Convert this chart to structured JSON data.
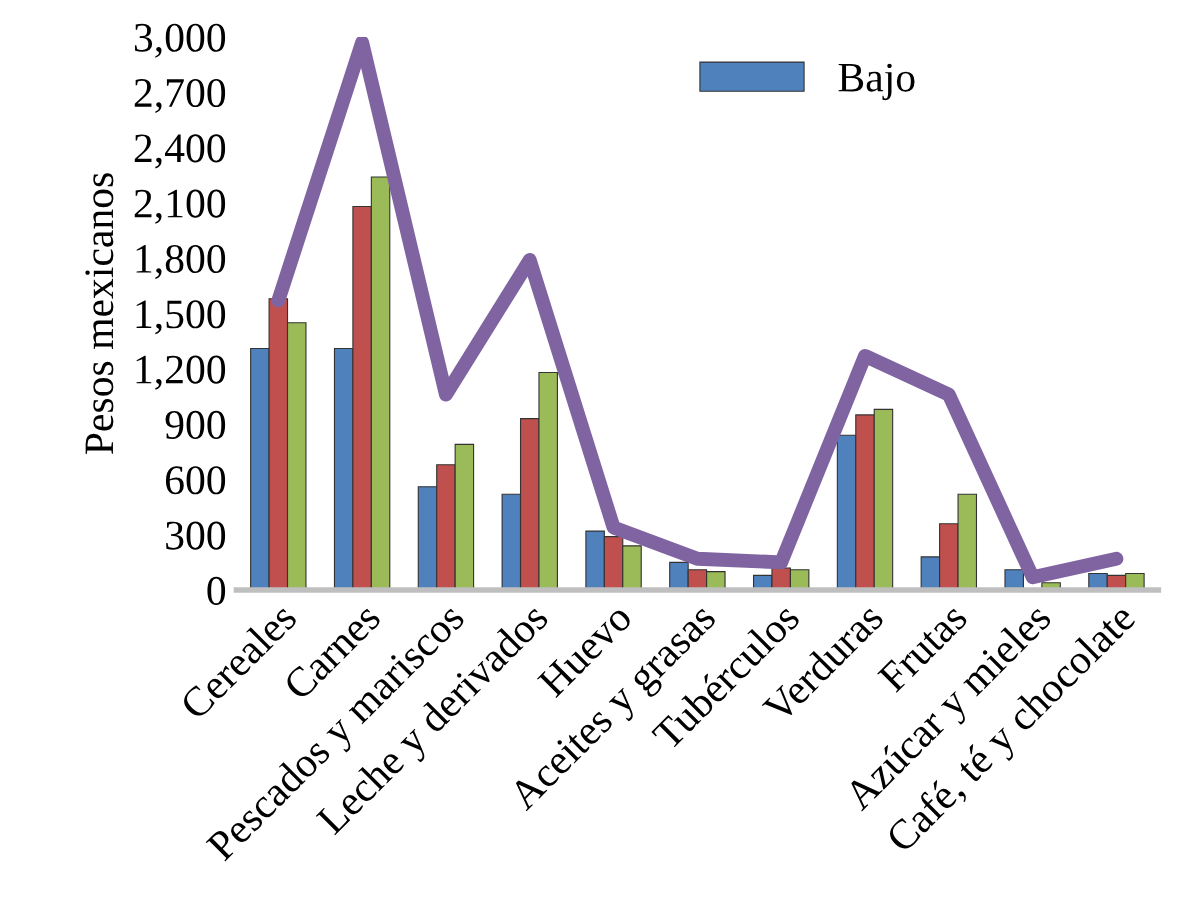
{
  "chart_data": {
    "type": "bar",
    "ylabel": "Pesos mexicanos",
    "categories": [
      "Cereales",
      "Carnes",
      "Pescados y mariscos",
      "Leche y derivados",
      "Huevo",
      "Aceites y grasas",
      "Tubérculos",
      "Verduras",
      "Frutas",
      "Azúcar y mieles",
      "Café, té y chocolate"
    ],
    "series": [
      {
        "name": "Bajo",
        "color": "#4f81bd",
        "values": [
          1310,
          1310,
          560,
          520,
          320,
          150,
          80,
          840,
          180,
          110,
          90
        ]
      },
      {
        "color": "#c0504d",
        "values": [
          1580,
          2080,
          680,
          930,
          290,
          110,
          120,
          950,
          360,
          null,
          80
        ]
      },
      {
        "color": "#9bbb59",
        "values": [
          1450,
          2240,
          790,
          1180,
          240,
          100,
          110,
          980,
          520,
          40,
          90
        ]
      },
      {
        "type": "line",
        "color": "#8064a2",
        "values": [
          1570,
          2970,
          1060,
          1790,
          340,
          170,
          150,
          1270,
          1060,
          70,
          170
        ]
      }
    ],
    "ylim": [
      0,
      3000
    ],
    "yticks": [
      {
        "value": 0,
        "label": "0"
      },
      {
        "value": 300,
        "label": "300"
      },
      {
        "value": 600,
        "label": "600"
      },
      {
        "value": 900,
        "label": "900"
      },
      {
        "value": 1200,
        "label": "1,200"
      },
      {
        "value": 1500,
        "label": "1,500"
      },
      {
        "value": 1800,
        "label": "1,800"
      },
      {
        "value": 2100,
        "label": "2,100"
      },
      {
        "value": 2400,
        "label": "2,400"
      },
      {
        "value": 2700,
        "label": "2,700"
      },
      {
        "value": 3000,
        "label": "3,000"
      }
    ],
    "grid": false,
    "legend": "top",
    "marker": "none",
    "line_style": "solid"
  }
}
